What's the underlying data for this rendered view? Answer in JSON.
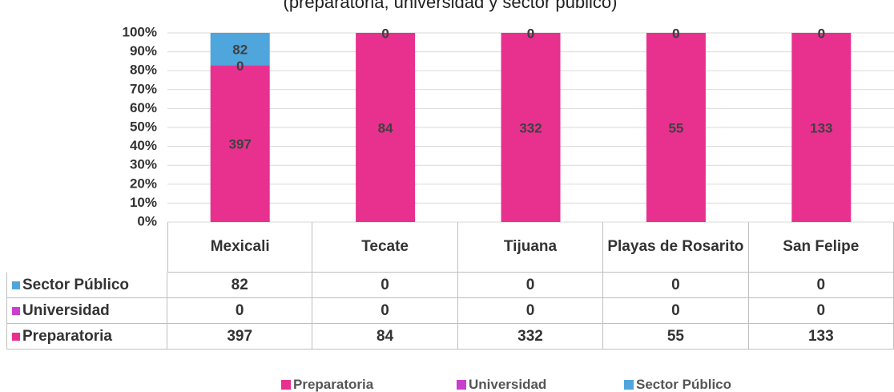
{
  "chart_data": {
    "type": "bar",
    "stacking": "percent",
    "subtitle": "(preparatoria, universidad y sector público)",
    "categories": [
      "Mexicali",
      "Tecate",
      "Tijuana",
      "Playas de Rosarito",
      "San Felipe"
    ],
    "series": [
      {
        "name": "Preparatoria",
        "color": "#e8318f",
        "values": [
          397,
          84,
          332,
          55,
          133
        ]
      },
      {
        "name": "Universidad",
        "color": "#c93fce",
        "values": [
          0,
          0,
          0,
          0,
          0
        ]
      },
      {
        "name": "Sector Público",
        "color": "#4ea6dc",
        "values": [
          82,
          0,
          0,
          0,
          0
        ]
      }
    ],
    "ylim": [
      0,
      100
    ],
    "yticks": [
      {
        "value": 0,
        "label": "0%"
      },
      {
        "value": 10,
        "label": "10%"
      },
      {
        "value": 20,
        "label": "20%"
      },
      {
        "value": 30,
        "label": "30%"
      },
      {
        "value": 40,
        "label": "40%"
      },
      {
        "value": 50,
        "label": "50%"
      },
      {
        "value": 60,
        "label": "60%"
      },
      {
        "value": 70,
        "label": "70%"
      },
      {
        "value": 80,
        "label": "80%"
      },
      {
        "value": 90,
        "label": "90%"
      },
      {
        "value": 100,
        "label": "100%"
      }
    ],
    "grid": true,
    "data_table": true,
    "legend": "bottom"
  }
}
